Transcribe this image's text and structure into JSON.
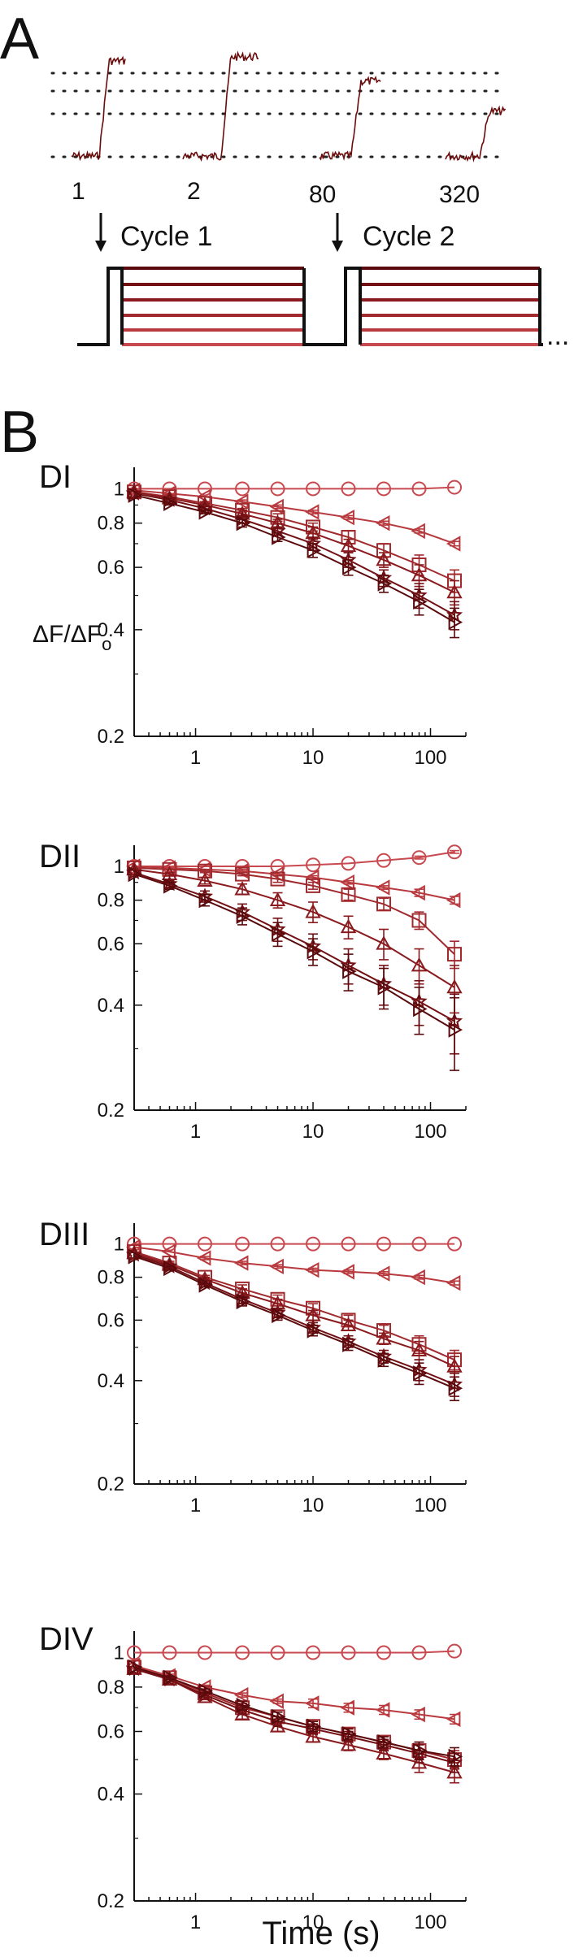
{
  "panel_a": {
    "letter": "A",
    "trace_labels": [
      "1",
      "2",
      "80",
      "320"
    ],
    "cycle_labels": [
      "Cycle 1",
      "Cycle 2"
    ],
    "ellipsis": "...",
    "trace_color": "#6b0c0c"
  },
  "panel_b": {
    "letter": "B",
    "ylabel_main": "ΔF/ΔF",
    "ylabel_sub": "o",
    "xlabel": "Time (s)"
  },
  "colors": {
    "c0": "#c8494f",
    "c1": "#b83a3e",
    "c2": "#a02a2e",
    "c3": "#8a1a1d",
    "c4": "#731014",
    "c5": "#5a0a0c"
  },
  "chart_data": [
    {
      "type": "line",
      "title": "DI",
      "x": [
        0.3,
        0.6,
        1.2,
        2.5,
        5,
        10,
        20,
        40,
        80,
        160
      ],
      "xscale": "log",
      "yscale": "log",
      "xlim": [
        0.3,
        200
      ],
      "ylim": [
        0.2,
        1.15
      ],
      "xticks": [
        "1",
        "10",
        "100"
      ],
      "yticks": [
        "0.2",
        "0.4",
        "0.6",
        "0.8",
        "1"
      ],
      "series": [
        {
          "marker": "circle",
          "values": [
            1.0,
            1.0,
            1.0,
            1.0,
            1.0,
            1.0,
            1.0,
            1.0,
            1.0,
            1.01
          ],
          "err": [
            0,
            0,
            0,
            0,
            0,
            0,
            0,
            0,
            0,
            0
          ]
        },
        {
          "marker": "triangle-left",
          "values": [
            0.99,
            0.97,
            0.95,
            0.92,
            0.89,
            0.86,
            0.83,
            0.8,
            0.76,
            0.7
          ],
          "err": [
            0,
            0,
            0,
            0.01,
            0.01,
            0.01,
            0.01,
            0.01,
            0.01,
            0.01
          ]
        },
        {
          "marker": "square",
          "values": [
            0.98,
            0.95,
            0.91,
            0.87,
            0.83,
            0.78,
            0.73,
            0.67,
            0.61,
            0.55
          ],
          "err": [
            0,
            0.01,
            0.01,
            0.01,
            0.02,
            0.02,
            0.03,
            0.03,
            0.04,
            0.04
          ]
        },
        {
          "marker": "triangle-up",
          "values": [
            0.98,
            0.94,
            0.9,
            0.85,
            0.8,
            0.75,
            0.69,
            0.63,
            0.57,
            0.51
          ],
          "err": [
            0,
            0.01,
            0.01,
            0.02,
            0.02,
            0.03,
            0.03,
            0.03,
            0.04,
            0.04
          ]
        },
        {
          "marker": "star",
          "values": [
            0.97,
            0.93,
            0.88,
            0.82,
            0.76,
            0.7,
            0.63,
            0.56,
            0.5,
            0.44
          ],
          "err": [
            0,
            0.01,
            0.01,
            0.02,
            0.02,
            0.03,
            0.03,
            0.03,
            0.04,
            0.04
          ]
        },
        {
          "marker": "triangle-right",
          "values": [
            0.96,
            0.91,
            0.86,
            0.8,
            0.73,
            0.67,
            0.6,
            0.54,
            0.48,
            0.42
          ],
          "err": [
            0,
            0.01,
            0.01,
            0.02,
            0.02,
            0.03,
            0.03,
            0.03,
            0.04,
            0.04
          ]
        }
      ]
    },
    {
      "type": "line",
      "title": "DII",
      "x": [
        0.3,
        0.6,
        1.2,
        2.5,
        5,
        10,
        20,
        40,
        80,
        160
      ],
      "xscale": "log",
      "yscale": "log",
      "xlim": [
        0.3,
        200
      ],
      "ylim": [
        0.2,
        1.15
      ],
      "xticks": [
        "1",
        "10",
        "100"
      ],
      "yticks": [
        "0.2",
        "0.4",
        "0.6",
        "0.8",
        "1"
      ],
      "series": [
        {
          "marker": "circle",
          "values": [
            1.0,
            1.0,
            1.0,
            1.0,
            1.0,
            1.01,
            1.02,
            1.04,
            1.06,
            1.1
          ],
          "err": [
            0,
            0,
            0,
            0,
            0,
            0,
            0,
            0,
            0.01,
            0.01
          ]
        },
        {
          "marker": "triangle-left",
          "values": [
            1.0,
            0.99,
            0.98,
            0.97,
            0.95,
            0.93,
            0.9,
            0.87,
            0.84,
            0.8
          ],
          "err": [
            0,
            0,
            0,
            0.01,
            0.01,
            0.01,
            0.01,
            0.01,
            0.02,
            0.02
          ]
        },
        {
          "marker": "square",
          "values": [
            0.99,
            0.98,
            0.97,
            0.95,
            0.92,
            0.88,
            0.83,
            0.78,
            0.7,
            0.56
          ],
          "err": [
            0,
            0,
            0.01,
            0.01,
            0.02,
            0.02,
            0.03,
            0.03,
            0.04,
            0.05
          ]
        },
        {
          "marker": "triangle-up",
          "values": [
            0.98,
            0.95,
            0.91,
            0.86,
            0.8,
            0.74,
            0.67,
            0.6,
            0.52,
            0.45
          ],
          "err": [
            0,
            0.01,
            0.02,
            0.03,
            0.04,
            0.05,
            0.05,
            0.06,
            0.06,
            0.07
          ]
        },
        {
          "marker": "star",
          "values": [
            0.96,
            0.89,
            0.82,
            0.74,
            0.66,
            0.59,
            0.52,
            0.46,
            0.41,
            0.36
          ],
          "err": [
            0,
            0.02,
            0.03,
            0.04,
            0.05,
            0.05,
            0.06,
            0.06,
            0.06,
            0.07
          ]
        },
        {
          "marker": "triangle-right",
          "values": [
            0.95,
            0.88,
            0.8,
            0.72,
            0.64,
            0.57,
            0.5,
            0.45,
            0.39,
            0.34
          ],
          "err": [
            0,
            0.02,
            0.03,
            0.04,
            0.05,
            0.05,
            0.06,
            0.06,
            0.06,
            0.08
          ]
        }
      ]
    },
    {
      "type": "line",
      "title": "DIII",
      "x": [
        0.3,
        0.6,
        1.2,
        2.5,
        5,
        10,
        20,
        40,
        80,
        160
      ],
      "xscale": "log",
      "yscale": "log",
      "xlim": [
        0.3,
        200
      ],
      "ylim": [
        0.2,
        1.15
      ],
      "xticks": [
        "1",
        "10",
        "100"
      ],
      "yticks": [
        "0.2",
        "0.4",
        "0.6",
        "0.8",
        "1"
      ],
      "series": [
        {
          "marker": "circle",
          "values": [
            1.0,
            1.0,
            1.0,
            1.0,
            1.0,
            1.0,
            1.0,
            1.0,
            1.0,
            1.0
          ],
          "err": [
            0,
            0,
            0,
            0,
            0,
            0,
            0,
            0,
            0,
            0
          ]
        },
        {
          "marker": "triangle-left",
          "values": [
            0.98,
            0.95,
            0.91,
            0.88,
            0.86,
            0.84,
            0.83,
            0.82,
            0.8,
            0.77
          ],
          "err": [
            0,
            0,
            0.01,
            0.01,
            0.01,
            0.01,
            0.01,
            0.01,
            0.01,
            0.01
          ]
        },
        {
          "marker": "square",
          "values": [
            0.95,
            0.88,
            0.8,
            0.74,
            0.69,
            0.65,
            0.6,
            0.56,
            0.51,
            0.46
          ],
          "err": [
            0,
            0.01,
            0.01,
            0.02,
            0.02,
            0.02,
            0.02,
            0.02,
            0.03,
            0.03
          ]
        },
        {
          "marker": "triangle-up",
          "values": [
            0.94,
            0.87,
            0.79,
            0.72,
            0.67,
            0.62,
            0.58,
            0.53,
            0.49,
            0.44
          ],
          "err": [
            0,
            0.01,
            0.01,
            0.02,
            0.02,
            0.02,
            0.02,
            0.02,
            0.03,
            0.03
          ]
        },
        {
          "marker": "star",
          "values": [
            0.93,
            0.86,
            0.77,
            0.69,
            0.63,
            0.57,
            0.52,
            0.47,
            0.43,
            0.39
          ],
          "err": [
            0,
            0.01,
            0.01,
            0.02,
            0.02,
            0.02,
            0.02,
            0.02,
            0.03,
            0.03
          ]
        },
        {
          "marker": "triangle-right",
          "values": [
            0.92,
            0.85,
            0.76,
            0.68,
            0.62,
            0.56,
            0.51,
            0.46,
            0.42,
            0.38
          ],
          "err": [
            0,
            0.01,
            0.01,
            0.02,
            0.02,
            0.02,
            0.02,
            0.02,
            0.03,
            0.03
          ]
        }
      ]
    },
    {
      "type": "line",
      "title": "DIV",
      "x": [
        0.3,
        0.6,
        1.2,
        2.5,
        5,
        10,
        20,
        40,
        80,
        160
      ],
      "xscale": "log",
      "yscale": "log",
      "xlim": [
        0.3,
        200
      ],
      "ylim": [
        0.2,
        1.15
      ],
      "xticks": [
        "1",
        "10",
        "100"
      ],
      "yticks": [
        "0.2",
        "0.4",
        "0.6",
        "0.8",
        "1"
      ],
      "xlabel": "Time (s)",
      "series": [
        {
          "marker": "circle",
          "values": [
            1.0,
            1.0,
            1.0,
            1.0,
            1.0,
            1.0,
            1.0,
            1.0,
            1.0,
            1.01
          ],
          "err": [
            0,
            0,
            0,
            0,
            0,
            0,
            0,
            0,
            0,
            0
          ]
        },
        {
          "marker": "triangle-left",
          "values": [
            0.92,
            0.86,
            0.8,
            0.76,
            0.73,
            0.72,
            0.7,
            0.69,
            0.67,
            0.65
          ],
          "err": [
            0,
            0.01,
            0.01,
            0.01,
            0.01,
            0.02,
            0.02,
            0.02,
            0.02,
            0.02
          ]
        },
        {
          "marker": "square",
          "values": [
            0.91,
            0.85,
            0.77,
            0.7,
            0.66,
            0.62,
            0.59,
            0.56,
            0.53,
            0.5
          ],
          "err": [
            0,
            0.01,
            0.01,
            0.02,
            0.02,
            0.02,
            0.02,
            0.02,
            0.03,
            0.03
          ]
        },
        {
          "marker": "triangle-up",
          "values": [
            0.9,
            0.84,
            0.75,
            0.67,
            0.62,
            0.58,
            0.55,
            0.52,
            0.49,
            0.46
          ],
          "err": [
            0,
            0.01,
            0.01,
            0.02,
            0.02,
            0.02,
            0.02,
            0.02,
            0.03,
            0.03
          ]
        },
        {
          "marker": "star",
          "values": [
            0.9,
            0.84,
            0.76,
            0.69,
            0.64,
            0.61,
            0.58,
            0.55,
            0.52,
            0.49
          ],
          "err": [
            0,
            0.01,
            0.01,
            0.02,
            0.02,
            0.02,
            0.02,
            0.02,
            0.03,
            0.03
          ]
        },
        {
          "marker": "triangle-right",
          "values": [
            0.91,
            0.85,
            0.78,
            0.71,
            0.66,
            0.62,
            0.59,
            0.56,
            0.53,
            0.51
          ],
          "err": [
            0,
            0.01,
            0.01,
            0.02,
            0.02,
            0.02,
            0.02,
            0.02,
            0.03,
            0.03
          ]
        }
      ]
    }
  ]
}
